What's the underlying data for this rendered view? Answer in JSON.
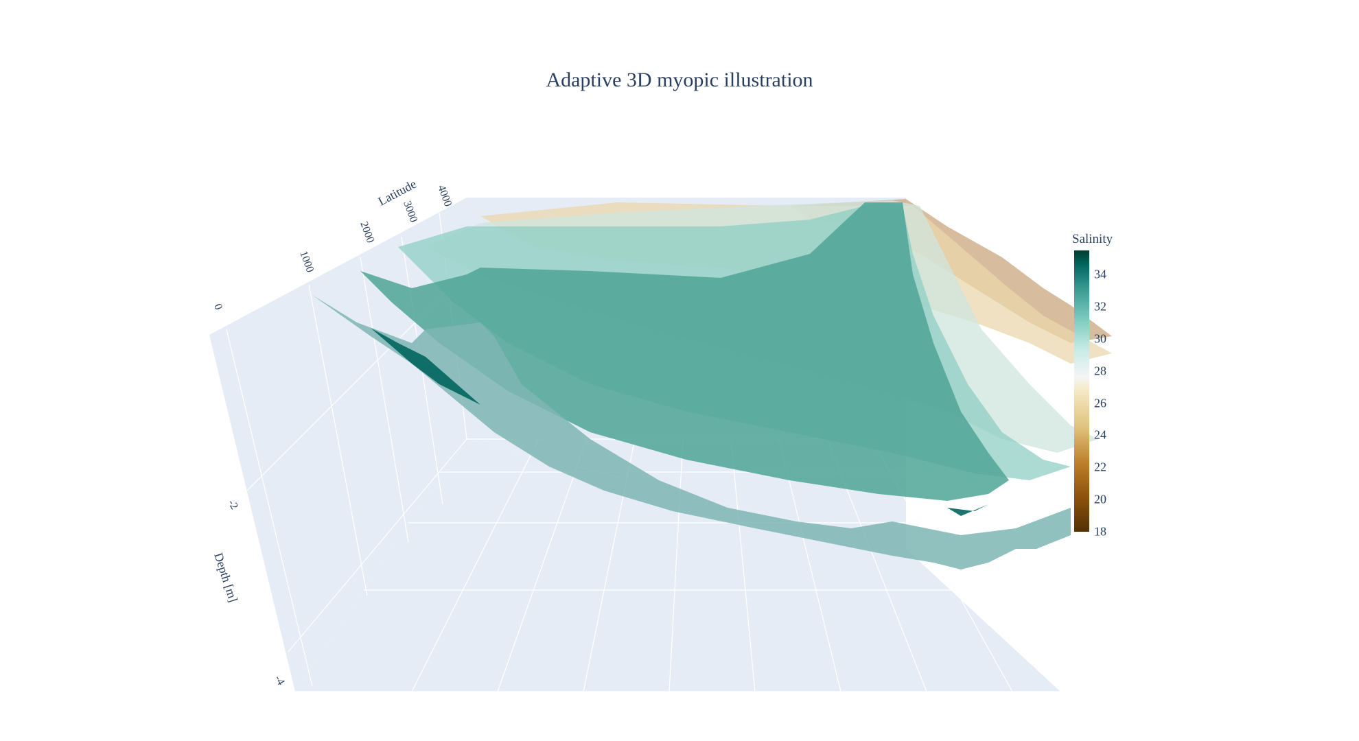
{
  "chart_data": {
    "type": "surface",
    "title": "Adaptive 3D myopic illustration",
    "scene": {
      "xaxis": {
        "title": "",
        "tick_labels": []
      },
      "yaxis": {
        "title": "Latitude",
        "tick_labels": [
          "0",
          "1000",
          "2000",
          "3000",
          "4000"
        ]
      },
      "zaxis": {
        "title": "Depth [m]",
        "tick_labels": [
          "-2",
          "-4"
        ]
      },
      "background": "#e5ecf6",
      "grid": true
    },
    "surfaces": [
      {
        "salinity": 33.0,
        "latitude_range": [
          1000,
          4000
        ],
        "depth_at_front": -1.7
      },
      {
        "salinity": 32.0,
        "latitude_range": [
          1300,
          4000
        ],
        "depth_at_front": -1.4
      },
      {
        "salinity": 30.0,
        "latitude_range": [
          1900,
          4000
        ],
        "depth_at_front": -1.1
      },
      {
        "salinity": 28.0,
        "latitude_range": [
          2600,
          4000
        ],
        "depth_at_front": -0.8
      },
      {
        "salinity": 25.0,
        "latitude_range": [
          3200,
          4000
        ],
        "depth_at_front": -0.5
      },
      {
        "salinity": 22.0,
        "latitude_range": [
          3600,
          4000
        ],
        "depth_at_front": -0.3
      }
    ],
    "colorbar": {
      "title": "Salinity",
      "min": 18,
      "max": 35.5,
      "ticks": [
        "34",
        "32",
        "30",
        "28",
        "26",
        "24",
        "22",
        "20",
        "18"
      ],
      "colorscale": "BrBG"
    }
  }
}
